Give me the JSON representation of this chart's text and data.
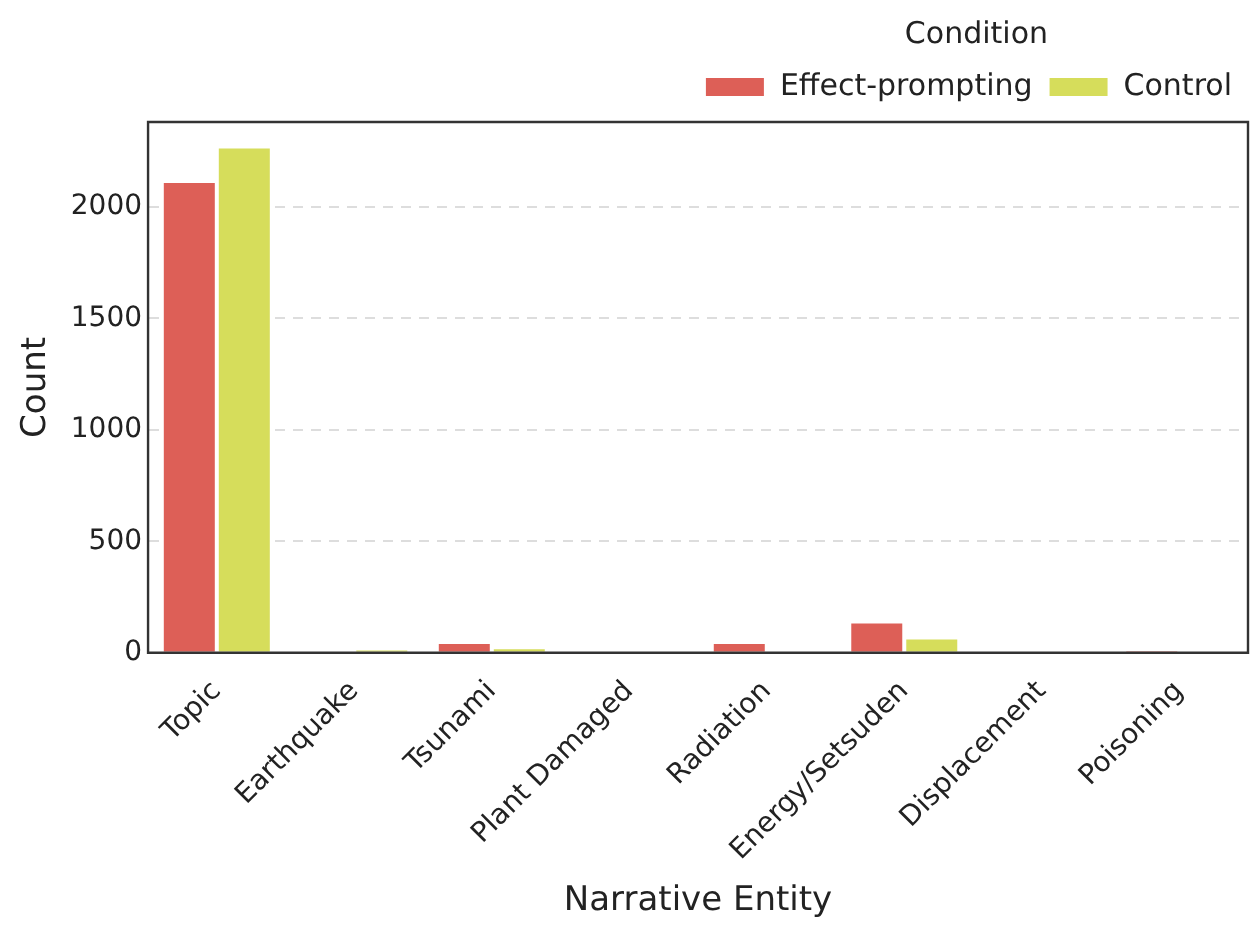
{
  "chart_data": {
    "type": "bar",
    "xlabel": "Narrative Entity",
    "ylabel": "Count",
    "legend_title": "Condition",
    "legend": "top right",
    "grid": "y",
    "categories": [
      "Topic",
      "Earthquake",
      "Tsunami",
      "Plant Damaged",
      "Radiation",
      "Energy/Setsuden",
      "Displacement",
      "Poisoning"
    ],
    "series": [
      {
        "name": "Effect-prompting",
        "color": "#dd5f57",
        "values": [
          2115,
          0,
          48,
          0,
          48,
          140,
          0,
          10
        ]
      },
      {
        "name": "Control",
        "color": "#d6dd5b",
        "values": [
          2270,
          15,
          25,
          0,
          0,
          68,
          0,
          0
        ]
      }
    ],
    "ylim": [
      0,
      2380
    ],
    "yticks": [
      0,
      500,
      1000,
      1500,
      2000
    ]
  }
}
